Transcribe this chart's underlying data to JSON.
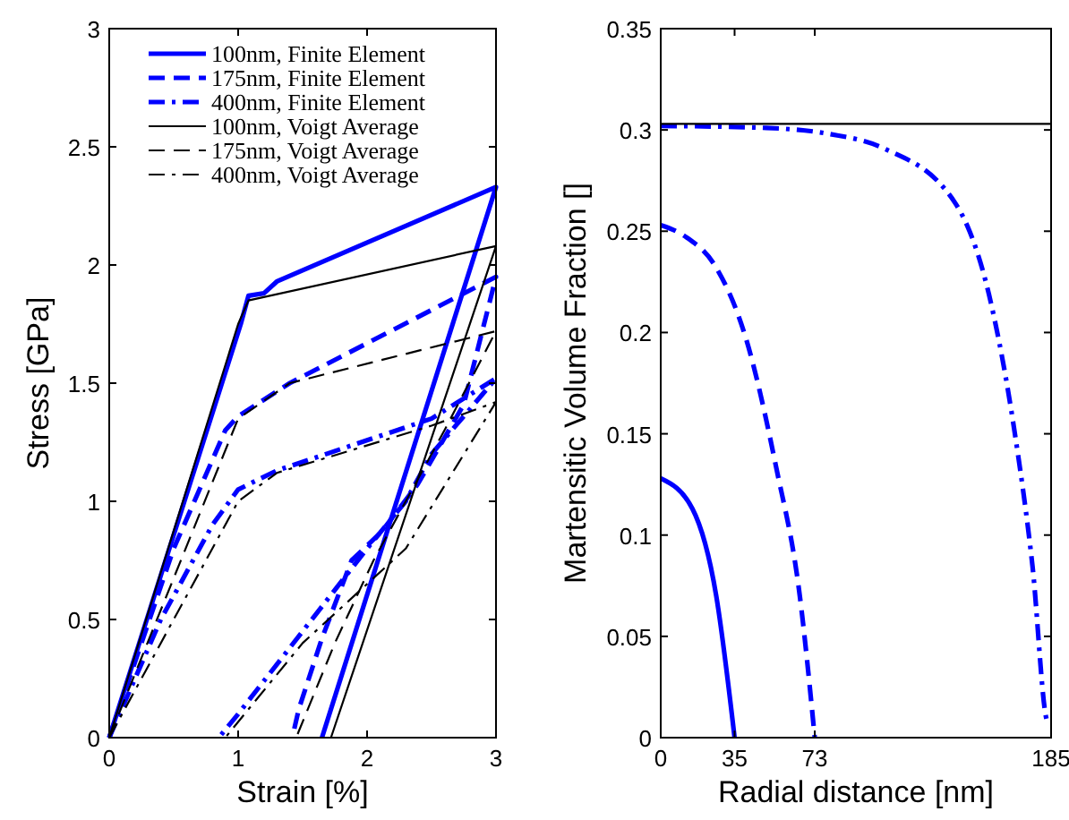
{
  "chart_data": [
    {
      "type": "line",
      "xlabel": "Strain [%]",
      "ylabel": "Stress [GPa]",
      "xlim": [
        0,
        3
      ],
      "ylim": [
        0,
        3
      ],
      "xticks": [
        0,
        1,
        2,
        3
      ],
      "yticks": [
        0,
        0.5,
        1,
        1.5,
        2,
        2.5,
        3
      ],
      "legend": "top left",
      "grid": false,
      "marker": "none",
      "series": [
        {
          "name": "100nm, Finite Element",
          "color": "#0000ff",
          "line_style": "solid",
          "x": [
            0,
            1.02,
            1.08,
            1.2,
            1.3,
            3,
            1.65
          ],
          "values": [
            0,
            1.75,
            1.87,
            1.88,
            1.93,
            2.33,
            0
          ]
        },
        {
          "name": "175nm, Finite Element",
          "color": "#0000ff",
          "line_style": "dashed",
          "x": [
            0,
            0.5,
            0.9,
            1.0,
            1.2,
            1.4,
            3,
            2.75,
            2.39,
            2.11,
            1.88,
            1.65,
            1.47,
            1.42
          ],
          "values": [
            0,
            0.8,
            1.3,
            1.36,
            1.43,
            1.5,
            1.95,
            1.41,
            1.07,
            0.87,
            0.75,
            0.42,
            0.12,
            0
          ]
        },
        {
          "name": "400nm, Finite Element",
          "color": "#0000ff",
          "line_style": "dashdot",
          "x": [
            0,
            0.4,
            0.8,
            1.0,
            1.3,
            2.5,
            3,
            2.5,
            2.3,
            2.0,
            1.5,
            1.0,
            0.85
          ],
          "values": [
            0,
            0.5,
            0.9,
            1.05,
            1.13,
            1.35,
            1.52,
            1.2,
            1.0,
            0.8,
            0.45,
            0.1,
            0
          ]
        },
        {
          "name": "100nm, Voigt Average",
          "color": "#000000",
          "line_style": "solid",
          "x": [
            0,
            1.0,
            1.08,
            3,
            1.72
          ],
          "values": [
            0,
            1.75,
            1.85,
            2.08,
            0
          ]
        },
        {
          "name": "175nm, Voigt Average",
          "color": "#000000",
          "line_style": "dashed",
          "x": [
            0,
            1.0,
            1.4,
            3,
            2.6,
            2.3,
            2.05,
            1.75,
            1.45
          ],
          "values": [
            0,
            1.35,
            1.5,
            1.72,
            1.3,
            1.0,
            0.75,
            0.4,
            0
          ]
        },
        {
          "name": "400nm, Voigt Average",
          "color": "#000000",
          "line_style": "dashdot",
          "x": [
            0,
            1.0,
            1.3,
            2.5,
            3,
            2.3,
            1.5,
            0.9
          ],
          "values": [
            0,
            1.0,
            1.12,
            1.32,
            1.42,
            0.8,
            0.4,
            0
          ]
        }
      ]
    },
    {
      "type": "line",
      "xlabel": "Radial distance [nm]",
      "ylabel": "Martensitic Volume Fraction []",
      "xlim": [
        0,
        185
      ],
      "ylim": [
        0,
        0.35
      ],
      "xticks": [
        0,
        35,
        73,
        185
      ],
      "yticks": [
        0,
        0.05,
        0.1,
        0.15,
        0.2,
        0.25,
        0.3,
        0.35
      ],
      "legend": false,
      "grid": false,
      "marker": "none",
      "series": [
        {
          "color": "#0000ff",
          "line_style": "solid",
          "x": [
            0,
            15,
            26.3,
            35
          ],
          "values": [
            0.128,
            0.113,
            0.07,
            0
          ]
        },
        {
          "color": "#0000ff",
          "line_style": "dashed",
          "x": [
            0,
            12.2,
            26.3,
            40.4,
            54.6,
            65.9,
            73
          ],
          "values": [
            0.253,
            0.247,
            0.232,
            0.197,
            0.134,
            0.07,
            0
          ]
        },
        {
          "color": "#0000ff",
          "line_style": "dashdot",
          "x": [
            0,
            50,
            80,
            105.5,
            139.5,
            156.4,
            167.7,
            176.2,
            183.3,
            185
          ],
          "values": [
            0.302,
            0.301,
            0.298,
            0.291,
            0.264,
            0.215,
            0.151,
            0.0845,
            0.008,
            0.007
          ]
        },
        {
          "color": "#000000",
          "line_style": "solid",
          "x": [
            0,
            185
          ],
          "values": [
            0.303,
            0.303
          ]
        }
      ]
    }
  ]
}
